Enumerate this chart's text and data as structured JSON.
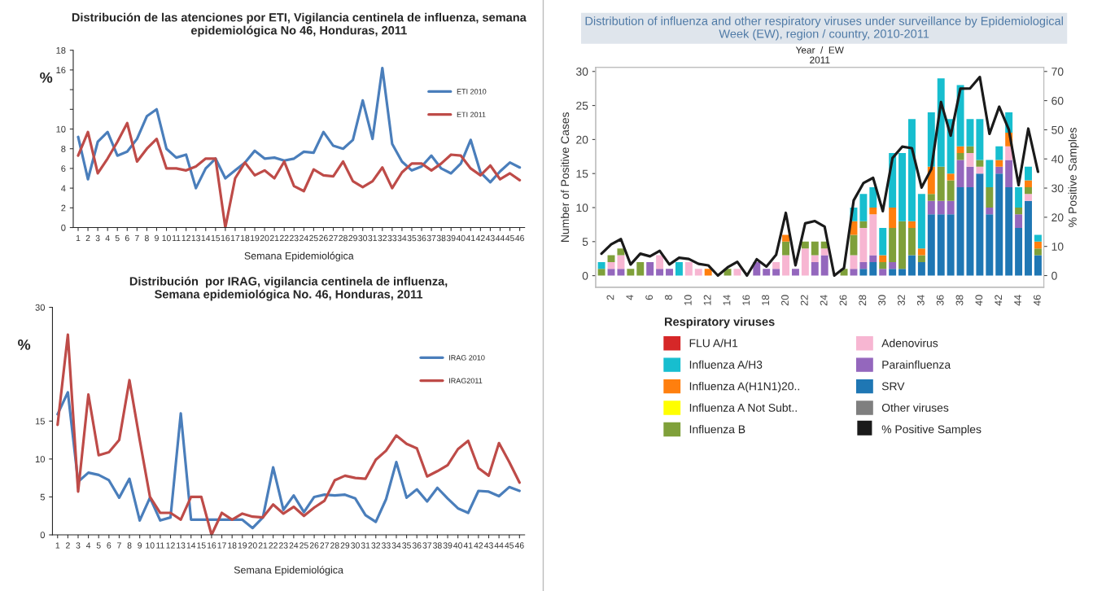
{
  "chart_data": [
    {
      "type": "line",
      "title": "Distribución de las atenciones por ETI, Vigilancia centinela de influenza, semana\nepidemiológica No 46, Honduras, 2011",
      "xlabel": "Semana Epidemiológica",
      "ylabel": "%",
      "categories": [
        "1",
        "2",
        "3",
        "4",
        "5",
        "6",
        "7",
        "8",
        "9",
        "10",
        "11",
        "12",
        "13",
        "14",
        "15",
        "16",
        "17",
        "18",
        "19",
        "20",
        "21",
        "22",
        "23",
        "24",
        "25",
        "26",
        "27",
        "28",
        "29",
        "30",
        "31",
        "32",
        "33",
        "34",
        "35",
        "36",
        "37",
        "38",
        "39",
        "40",
        "41",
        "42",
        "43",
        "44",
        "45",
        "46"
      ],
      "ylim": [
        0,
        18
      ],
      "yticks": [
        0,
        2,
        4,
        6,
        8,
        10,
        {
          "value": 12,
          "label": null
        },
        {
          "value": 14,
          "label": null
        },
        16,
        18
      ],
      "legend": "top right",
      "series": [
        {
          "name": "ETI 2010",
          "color": "#4a7ebb",
          "values": [
            9.2,
            4.9,
            8.7,
            9.7,
            7.3,
            7.7,
            9.0,
            11.3,
            12.0,
            8.0,
            7.1,
            7.4,
            4.0,
            6.0,
            7.0,
            5.0,
            5.8,
            6.6,
            7.8,
            7.0,
            7.1,
            6.8,
            7.0,
            7.7,
            7.6,
            9.7,
            8.3,
            8.0,
            8.9,
            12.9,
            9.0,
            16.2,
            8.5,
            6.7,
            5.8,
            6.2,
            7.3,
            6.0,
            5.5,
            6.5,
            8.9,
            5.6,
            4.6,
            5.7,
            6.6,
            6.1
          ]
        },
        {
          "name": "ETI 2011",
          "color": "#be4b48",
          "values": [
            7.3,
            9.7,
            5.5,
            7.0,
            8.7,
            10.6,
            6.7,
            8.0,
            9.0,
            6.0,
            6.0,
            5.8,
            6.2,
            7.0,
            7.0,
            0,
            5.0,
            6.6,
            5.3,
            5.8,
            5.0,
            6.7,
            4.2,
            3.7,
            5.9,
            5.3,
            5.2,
            6.7,
            4.7,
            4.1,
            4.7,
            6.1,
            4.0,
            5.6,
            6.5,
            6.5,
            5.8,
            6.5,
            7.4,
            7.3,
            6.0,
            5.3,
            6.3,
            4.9,
            5.5,
            4.8
          ]
        }
      ]
    },
    {
      "type": "line",
      "title": "Distribución  por IRAG, vigilancia centinela de influenza,\nSemana epidemiológica No. 46, Honduras, 2011",
      "xlabel": "Semana Epidemiológica",
      "ylabel": "%",
      "categories": [
        "1",
        "2",
        "3",
        "4",
        "5",
        "6",
        "7",
        "8",
        "9",
        "10",
        "11",
        "12",
        "13",
        "14",
        "15",
        "16",
        "17",
        "18",
        "19",
        "20",
        "21",
        "22",
        "23",
        "24",
        "25",
        "26",
        "27",
        "28",
        "29",
        "30",
        "31",
        "32",
        "33",
        "34",
        "35",
        "36",
        "37",
        "38",
        "39",
        "40",
        "41",
        "42",
        "43",
        "44",
        "45",
        "46"
      ],
      "ylim": [
        0,
        30
      ],
      "yticks": [
        0,
        5,
        10,
        15,
        30
      ],
      "legend": "top right",
      "series": [
        {
          "name": "IRAG 2010",
          "color": "#4a7ebb",
          "values": [
            15.9,
            18.8,
            7.0,
            8.2,
            7.9,
            7.2,
            4.9,
            7.4,
            1.9,
            4.9,
            1.9,
            2.3,
            16.0,
            2.0,
            2.0,
            2.0,
            2.0,
            2.0,
            2.0,
            0.9,
            2.3,
            8.9,
            3.3,
            5.2,
            3.0,
            5.0,
            5.3,
            5.2,
            5.3,
            4.8,
            2.6,
            1.7,
            4.7,
            9.6,
            4.9,
            6.0,
            4.4,
            6.2,
            4.8,
            3.5,
            2.9,
            5.8,
            5.7,
            5.1,
            6.3,
            5.8
          ]
        },
        {
          "name": "IRAG2011",
          "color": "#be4b48",
          "values": [
            14.5,
            26.4,
            5.7,
            18.5,
            10.5,
            10.9,
            12.5,
            20.4,
            12.5,
            5.0,
            2.9,
            2.9,
            2.0,
            5.0,
            5.0,
            0,
            2.9,
            2.0,
            2.8,
            2.4,
            2.3,
            4.0,
            2.8,
            3.7,
            2.5,
            3.6,
            4.5,
            7.2,
            7.8,
            7.5,
            7.4,
            9.9,
            11.1,
            13.1,
            12.0,
            11.4,
            7.7,
            8.4,
            9.2,
            11.3,
            12.4,
            8.8,
            7.8,
            12.1,
            9.6,
            6.9
          ]
        }
      ]
    },
    {
      "type": "bar",
      "stacked": true,
      "title": "Distribution of influenza and other respiratory viruses under surveillance by Epidemiological\nWeek (EW), region / country, 2010-2011",
      "ylabel": "Number of Positive Cases",
      "y2label": "% Positive Samples",
      "legend_title": "Respiratory viruses",
      "legend": "bottom",
      "annotations": [
        "Year  /  EW",
        "2011"
      ],
      "categories": [
        null,
        "2",
        null,
        "4",
        null,
        "6",
        null,
        "8",
        null,
        "10",
        null,
        "12",
        null,
        "14",
        null,
        "16",
        null,
        "18",
        null,
        "20",
        null,
        "22",
        null,
        "24",
        null,
        "26",
        null,
        "28",
        null,
        "30",
        null,
        "32",
        null,
        "34",
        null,
        "36",
        null,
        "38",
        null,
        "40",
        null,
        "42",
        null,
        "44",
        null,
        "46"
      ],
      "ylim": [
        -1.7,
        30.6
      ],
      "yticks": [
        0,
        5,
        10,
        15,
        20,
        25,
        30
      ],
      "y2lim": [
        -4,
        71.4
      ],
      "y2ticks": [
        0,
        10,
        20,
        30,
        40,
        50,
        60,
        70
      ],
      "series": [
        {
          "name": "Other viruses",
          "color": "#7f7f7f",
          "values": [
            0,
            0,
            0,
            0,
            0,
            0,
            0,
            0,
            0,
            0,
            0,
            0,
            0,
            0,
            0,
            0,
            0,
            0,
            0,
            0,
            0,
            0,
            0,
            0,
            0,
            0,
            0,
            0,
            0,
            0,
            0,
            0,
            0,
            0,
            0,
            0,
            0,
            0,
            0,
            0,
            0,
            0,
            0,
            0,
            0,
            0
          ]
        },
        {
          "name": "SRV",
          "color": "#1f77b4",
          "values": [
            0,
            0,
            0,
            0,
            0,
            0,
            0,
            0,
            0,
            0,
            0,
            0,
            0,
            0,
            0,
            0,
            0,
            0,
            0,
            0,
            0,
            0,
            0,
            0,
            0,
            0,
            0,
            1,
            2,
            0,
            1,
            1,
            3,
            2,
            9,
            9,
            9,
            13,
            13,
            15,
            9,
            15,
            13,
            7,
            11,
            3
          ]
        },
        {
          "name": "Parainfluenza",
          "color": "#9467bd",
          "values": [
            0,
            1,
            1,
            0,
            0,
            2,
            1,
            1,
            0,
            0,
            0,
            0,
            0,
            0,
            0,
            0,
            2,
            1,
            1,
            0,
            1,
            0,
            2,
            3,
            0,
            0,
            1,
            1,
            1,
            1,
            1,
            0,
            0,
            0,
            2,
            2,
            2,
            4,
            3,
            0,
            1,
            1,
            4,
            2,
            0,
            0
          ]
        },
        {
          "name": "Adenovirus",
          "color": "#f7b6d2",
          "values": [
            0,
            1,
            2,
            0,
            0,
            0,
            2,
            0,
            0,
            2,
            1,
            0,
            0,
            0,
            1,
            0,
            0,
            0,
            1,
            3,
            0,
            4,
            1,
            1,
            0,
            0,
            2,
            5,
            6,
            0,
            0,
            0,
            0,
            0,
            0,
            0,
            0,
            0,
            2,
            1,
            0,
            0,
            2,
            0,
            1,
            0
          ]
        },
        {
          "name": "Influenza B",
          "color": "#7fa03a",
          "values": [
            1,
            1,
            1,
            1,
            2,
            0,
            0,
            0,
            0,
            0,
            0,
            0,
            0,
            1,
            0,
            0,
            0,
            0,
            0,
            2,
            0,
            1,
            2,
            1,
            0,
            1,
            3,
            1,
            0,
            1,
            5,
            7,
            4,
            1,
            1,
            5,
            3,
            1,
            1,
            1,
            3,
            0,
            0,
            1,
            1,
            1
          ]
        },
        {
          "name": "Influenza A Not Subt..",
          "color": "#ffff00",
          "values": [
            0,
            0,
            0,
            0,
            0,
            0,
            0,
            0,
            0,
            0,
            0,
            0,
            0,
            0,
            0,
            0,
            0,
            0,
            0,
            0,
            0,
            0,
            0,
            0,
            0,
            0,
            0,
            0,
            0,
            0,
            0,
            0,
            0,
            0,
            0,
            0,
            0,
            0,
            0,
            0,
            0,
            0,
            0,
            0,
            0,
            0
          ]
        },
        {
          "name": "Influenza A(H1N1)20..",
          "color": "#ff7f0e",
          "values": [
            0,
            0,
            0,
            0,
            0,
            0,
            0,
            0,
            0,
            0,
            0,
            1,
            0,
            0,
            0,
            0,
            0,
            0,
            0,
            1,
            0,
            0,
            0,
            0,
            0,
            0,
            2,
            0,
            1,
            1,
            3,
            0,
            1,
            1,
            4,
            0,
            1,
            1,
            0,
            0,
            0,
            1,
            2,
            0,
            1,
            1
          ]
        },
        {
          "name": "Influenza A/H3",
          "color": "#17becf",
          "values": [
            1,
            0,
            0,
            0,
            0,
            0,
            0,
            0,
            2,
            0,
            0,
            0,
            0,
            0,
            0,
            0,
            0,
            0,
            0,
            0,
            0,
            0,
            0,
            0,
            0,
            0,
            2,
            4,
            3,
            4,
            8,
            10,
            15,
            8,
            8,
            13,
            8,
            9,
            4,
            6,
            4,
            2,
            3,
            3,
            2,
            1
          ]
        },
        {
          "name": "FLU A/H1",
          "color": "#d62728",
          "values": [
            0,
            0,
            0,
            0,
            0,
            0,
            0,
            0,
            0,
            0,
            0,
            0,
            0,
            0,
            0,
            0,
            0,
            0,
            0,
            0,
            0,
            0,
            0,
            0,
            0,
            0,
            0,
            0,
            0,
            0,
            0,
            0,
            0,
            0,
            0,
            0,
            0,
            0,
            0,
            0,
            0,
            0,
            0,
            0,
            0,
            0
          ]
        },
        {
          "name": "% Positive Samples",
          "type": "line",
          "axis": "y2",
          "color": "#1a1a1a",
          "values": [
            7.5,
            10.7,
            12.5,
            3.8,
            7.5,
            6.6,
            8.5,
            3.8,
            6.1,
            5.7,
            4.0,
            3.5,
            0,
            2.8,
            4.7,
            0,
            5.6,
            3.1,
            7.1,
            21.5,
            3.5,
            17.9,
            18.7,
            16.8,
            0,
            2.6,
            25.8,
            31.7,
            33.5,
            22.1,
            40.3,
            44.2,
            43.7,
            30.2,
            36.5,
            59.5,
            48.0,
            64.1,
            64.2,
            68.1,
            48.6,
            57.9,
            50.0,
            31.0,
            50.4,
            35.6
          ]
        }
      ]
    }
  ]
}
